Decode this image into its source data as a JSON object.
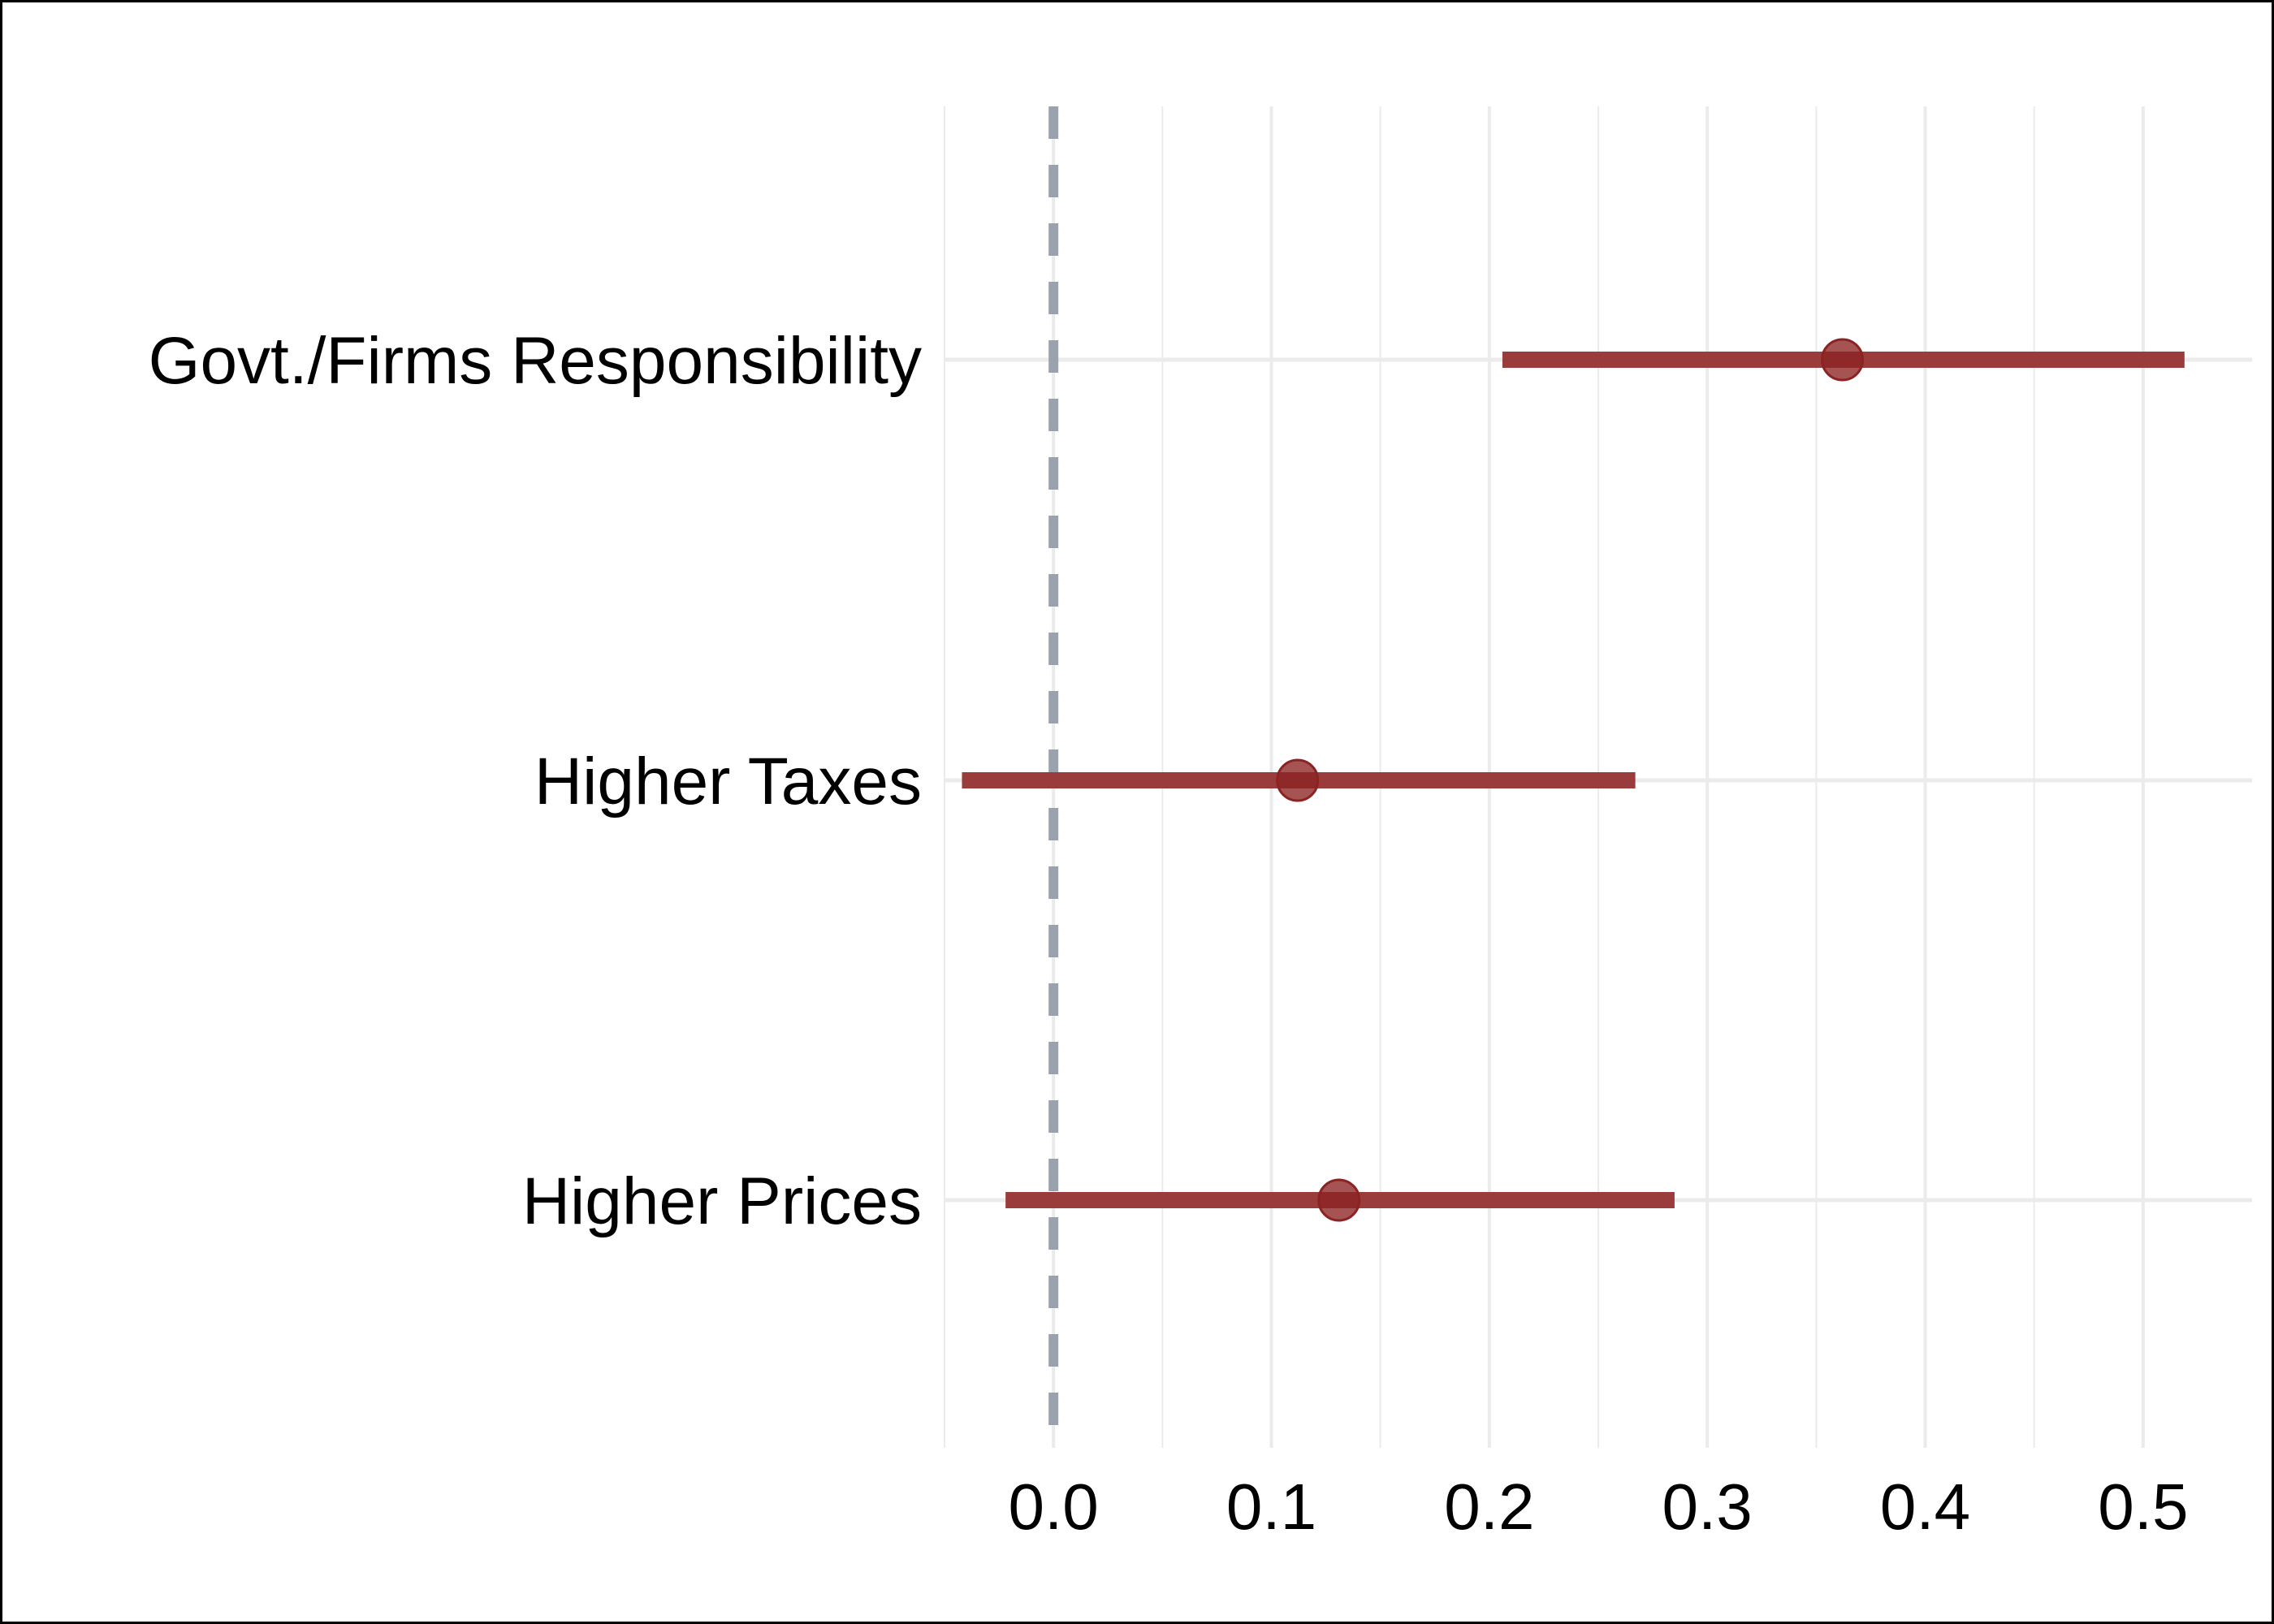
{
  "chart_data": {
    "type": "coefficient_plot",
    "title": "",
    "xlabel": "",
    "ylabel": "",
    "xlim": [
      -0.05,
      0.55
    ],
    "x_ticks": [
      0.0,
      0.1,
      0.2,
      0.3,
      0.4,
      0.5
    ],
    "x_tick_labels": [
      "0.0",
      "0.1",
      "0.2",
      "0.3",
      "0.4",
      "0.5"
    ],
    "reference_line": 0.0,
    "grid": true,
    "legend": "none",
    "categories": [
      "Govt./Firms Responsibility",
      "Higher Taxes",
      "Higher Prices"
    ],
    "series": [
      {
        "estimates": [
          0.362,
          0.112,
          0.131
        ],
        "ci_low": [
          0.206,
          -0.042,
          -0.022
        ],
        "ci_high": [
          0.519,
          0.267,
          0.285
        ]
      }
    ],
    "colors": {
      "interval": "#9b3c3c",
      "point": "#8c2323",
      "reference_line": "#9aa2ad",
      "grid": "#ebebeb"
    }
  }
}
